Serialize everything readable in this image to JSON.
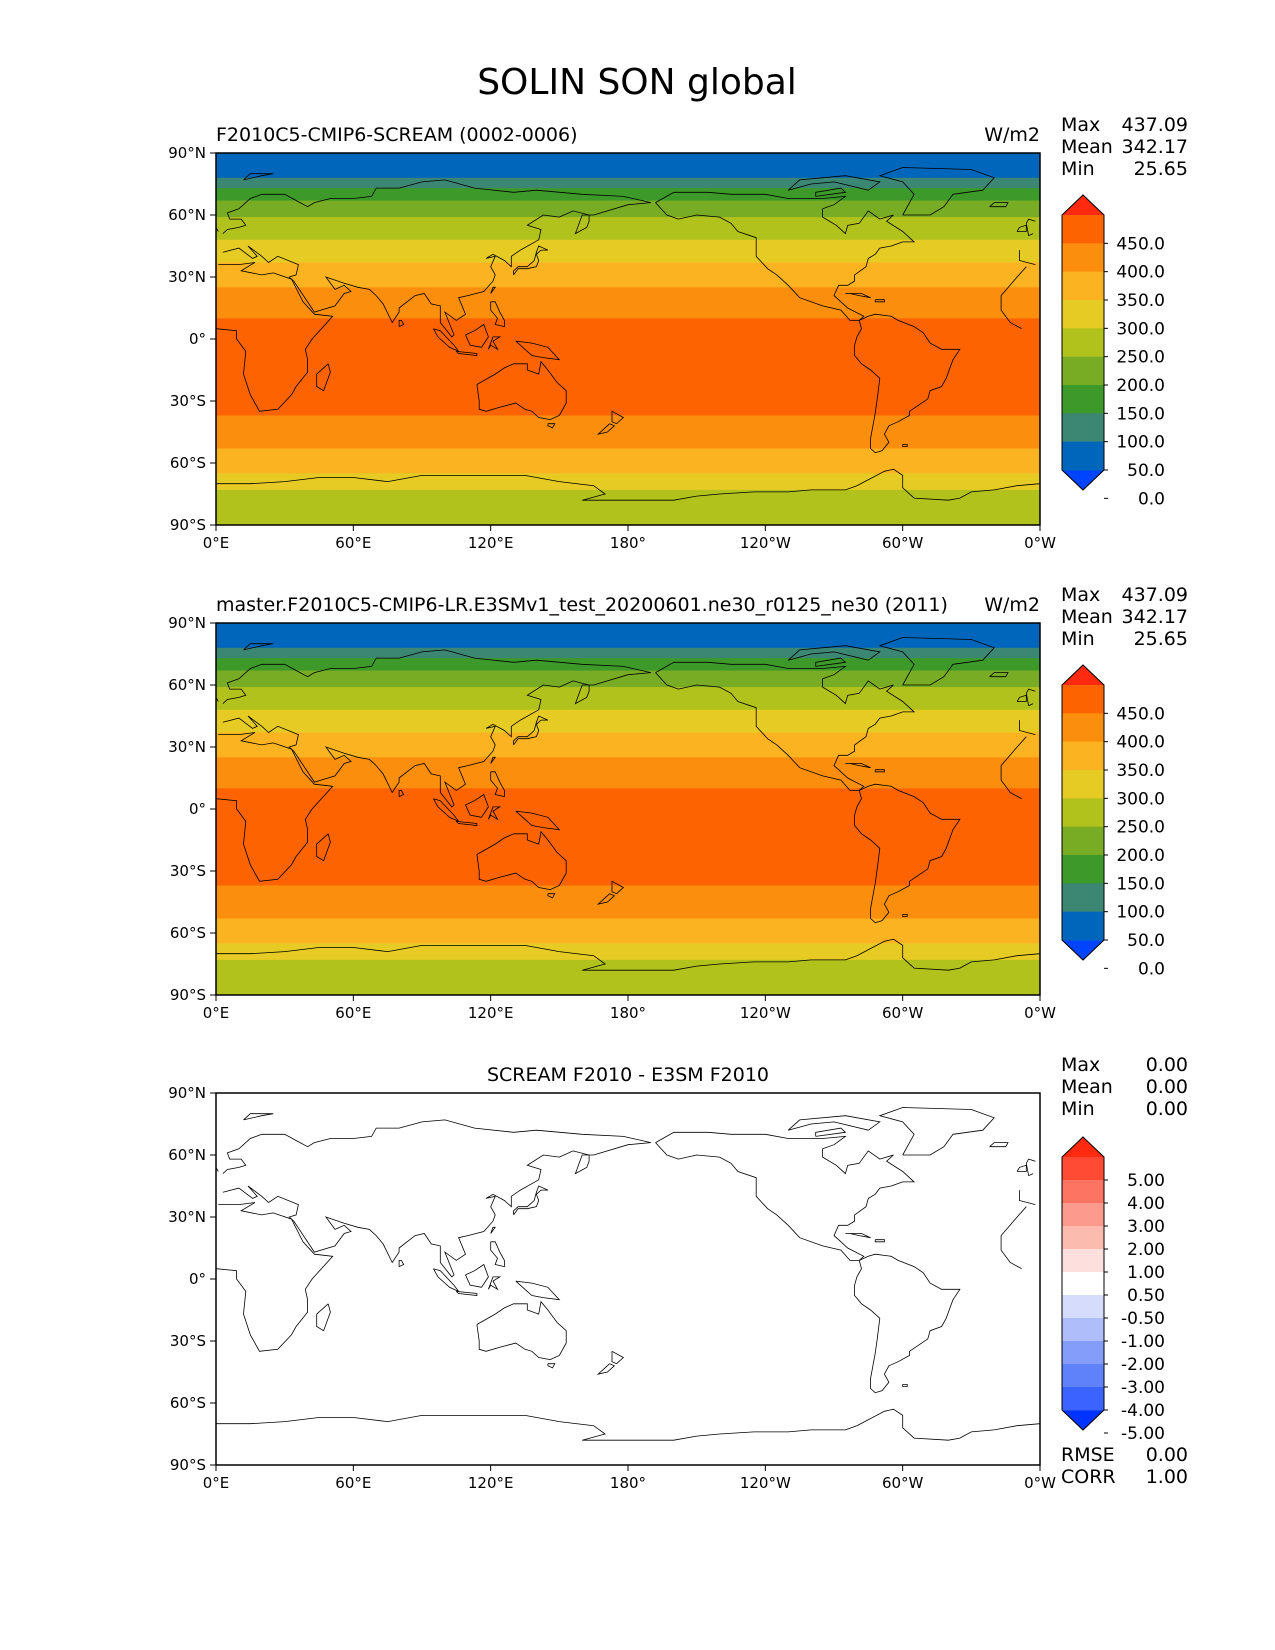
{
  "figure_title": "SOLIN SON global",
  "colors": {
    "solin_levels": [
      "#0044ff",
      "#0066bb",
      "#3c8674",
      "#3d9a2a",
      "#78ac25",
      "#b2c21d",
      "#e6cb25",
      "#fbb322",
      "#fc8e0e",
      "#fd6401",
      "#ff2a10"
    ],
    "diff_levels": [
      "#0033ff",
      "#3a63ff",
      "#5f82fa",
      "#859dfa",
      "#afbefb",
      "#d5dcfc",
      "#ffffff",
      "#fde0dd",
      "#fcbbaf",
      "#fd9a8e",
      "#fd7463",
      "#ff4a34",
      "#ff2a10"
    ],
    "coast": "#000000"
  },
  "panels": [
    {
      "left_title": "F2010C5-CMIP6-SCREAM (0002-0006)",
      "right_title": "W/m2",
      "stats": [
        {
          "label": "Max",
          "value": "437.09"
        },
        {
          "label": "Mean",
          "value": "342.17"
        },
        {
          "label": "Min",
          "value": "25.65"
        }
      ]
    },
    {
      "left_title": "master.F2010C5-CMIP6-LR.E3SMv1_test_20200601.ne30_r0125_ne30 (2011)",
      "right_title": "W/m2",
      "stats": [
        {
          "label": "Max",
          "value": "437.09"
        },
        {
          "label": "Mean",
          "value": "342.17"
        },
        {
          "label": "Min",
          "value": "25.65"
        }
      ]
    },
    {
      "center_title": "SCREAM F2010 - E3SM F2010",
      "stats": [
        {
          "label": "Max",
          "value": "0.00"
        },
        {
          "label": "Mean",
          "value": "0.00"
        },
        {
          "label": "Min",
          "value": "0.00"
        }
      ],
      "extra_stats": [
        {
          "label": "RMSE",
          "value": "0.00"
        },
        {
          "label": "CORR",
          "value": "1.00"
        }
      ]
    }
  ],
  "axes": {
    "lon_ticks": [
      "0°E",
      "60°E",
      "120°E",
      "180°",
      "120°W",
      "60°W",
      "0°W"
    ],
    "lat_ticks": [
      "90°N",
      "60°N",
      "30°N",
      "0°",
      "30°S",
      "60°S",
      "90°S"
    ]
  },
  "solin_colorbar_labels": [
    "450.0",
    "400.0",
    "350.0",
    "300.0",
    "250.0",
    "200.0",
    "150.0",
    "100.0",
    "50.0",
    "0.0"
  ],
  "diff_colorbar_labels": [
    "5.00",
    "4.00",
    "3.00",
    "2.00",
    "1.00",
    "0.50",
    "-0.50",
    "-1.00",
    "-2.00",
    "-3.00",
    "-4.00",
    "-5.00"
  ],
  "chart_data": {
    "type": "heatmap",
    "variable": "SOLIN",
    "season": "SON",
    "units": "W/m2",
    "lat_band_edges": [
      90,
      78,
      73,
      67,
      59,
      48,
      37,
      25,
      10,
      -37,
      -53,
      -65,
      -73,
      -90
    ],
    "lat_band_level_index": [
      1,
      2,
      3,
      4,
      5,
      6,
      7,
      8,
      9,
      8,
      7,
      6,
      5
    ],
    "solin_levels": [
      0,
      50,
      100,
      150,
      200,
      250,
      300,
      350,
      400,
      450
    ],
    "diff_levels": [
      -5,
      -4,
      -3,
      -2,
      -1,
      -0.5,
      0.5,
      1,
      2,
      3,
      4,
      5
    ],
    "diff_field_value": 0.0
  }
}
